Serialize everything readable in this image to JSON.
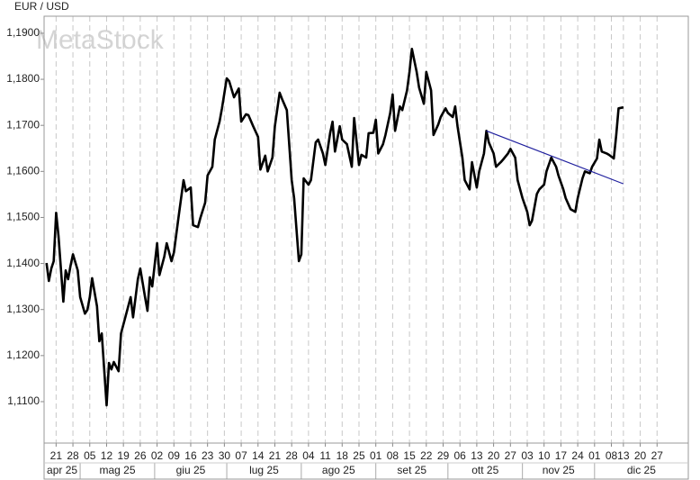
{
  "chart_data": {
    "type": "line",
    "title": "EUR / USD",
    "watermark": "MetaStock",
    "color": "#000000",
    "grid": true,
    "xlim": [
      "2025-04-16",
      "2026-01-09"
    ],
    "ylim": [
      1.101,
      1.1937
    ],
    "yticks": [
      {
        "value": 1.11,
        "label": "1,1100"
      },
      {
        "value": 1.12,
        "label": "1,1200"
      },
      {
        "value": 1.13,
        "label": "1,1300"
      },
      {
        "value": 1.14,
        "label": "1,1400"
      },
      {
        "value": 1.15,
        "label": "1,1500"
      },
      {
        "value": 1.16,
        "label": "1,1600"
      },
      {
        "value": 1.17,
        "label": "1,1700"
      },
      {
        "value": 1.18,
        "label": "1,1800"
      },
      {
        "value": 1.19,
        "label": "1,1900"
      }
    ],
    "xticks": [
      {
        "value": "2025-04-21",
        "label": "21"
      },
      {
        "value": "2025-04-28",
        "label": "28"
      },
      {
        "value": "2025-05-05",
        "label": "05"
      },
      {
        "value": "2025-05-12",
        "label": "12"
      },
      {
        "value": "2025-05-19",
        "label": "19"
      },
      {
        "value": "2025-05-26",
        "label": "26"
      },
      {
        "value": "2025-06-02",
        "label": "02"
      },
      {
        "value": "2025-06-09",
        "label": "09"
      },
      {
        "value": "2025-06-16",
        "label": "16"
      },
      {
        "value": "2025-06-23",
        "label": "23"
      },
      {
        "value": "2025-06-30",
        "label": "30"
      },
      {
        "value": "2025-07-07",
        "label": "07"
      },
      {
        "value": "2025-07-14",
        "label": "14"
      },
      {
        "value": "2025-07-21",
        "label": "21"
      },
      {
        "value": "2025-07-28",
        "label": "28"
      },
      {
        "value": "2025-08-04",
        "label": "04"
      },
      {
        "value": "2025-08-11",
        "label": "11"
      },
      {
        "value": "2025-08-18",
        "label": "18"
      },
      {
        "value": "2025-08-25",
        "label": "25"
      },
      {
        "value": "2025-09-01",
        "label": "01"
      },
      {
        "value": "2025-09-08",
        "label": "08"
      },
      {
        "value": "2025-09-15",
        "label": "15"
      },
      {
        "value": "2025-09-22",
        "label": "22"
      },
      {
        "value": "2025-09-29",
        "label": "29"
      },
      {
        "value": "2025-10-06",
        "label": "06"
      },
      {
        "value": "2025-10-13",
        "label": "13"
      },
      {
        "value": "2025-10-20",
        "label": "20"
      },
      {
        "value": "2025-10-27",
        "label": "27"
      },
      {
        "value": "2025-11-03",
        "label": "03"
      },
      {
        "value": "2025-11-10",
        "label": "10"
      },
      {
        "value": "2025-11-17",
        "label": "17"
      },
      {
        "value": "2025-11-24",
        "label": "24"
      },
      {
        "value": "2025-12-01",
        "label": "01"
      },
      {
        "value": "2025-12-08",
        "label": "08"
      },
      {
        "value": "2025-12-13",
        "label": "13"
      },
      {
        "value": "2025-12-20",
        "label": "20"
      },
      {
        "value": "2025-12-27",
        "label": "27"
      }
    ],
    "month_ticks": [
      {
        "value": "2025-04-01",
        "label": "apr 25"
      },
      {
        "value": "2025-05-01",
        "label": "mag 25"
      },
      {
        "value": "2025-06-01",
        "label": "giu 25"
      },
      {
        "value": "2025-07-01",
        "label": "lug 25"
      },
      {
        "value": "2025-08-01",
        "label": "ago 25"
      },
      {
        "value": "2025-09-01",
        "label": "set 25"
      },
      {
        "value": "2025-10-01",
        "label": "ott 25"
      },
      {
        "value": "2025-11-01",
        "label": "nov 25"
      },
      {
        "value": "2025-12-01",
        "label": "dic 25"
      }
    ],
    "x": [
      "2025-04-17",
      "2025-04-18",
      "2025-04-19",
      "2025-04-20",
      "2025-04-21",
      "2025-04-22",
      "2025-04-24",
      "2025-04-25",
      "2025-04-26",
      "2025-04-27",
      "2025-04-28",
      "2025-04-30",
      "2025-05-01",
      "2025-05-03",
      "2025-05-04",
      "2025-05-05",
      "2025-05-06",
      "2025-05-08",
      "2025-05-09",
      "2025-05-10",
      "2025-05-12",
      "2025-05-13",
      "2025-05-14",
      "2025-05-15",
      "2025-05-17",
      "2025-05-18",
      "2025-05-20",
      "2025-05-22",
      "2025-05-23",
      "2025-05-25",
      "2025-05-26",
      "2025-05-28",
      "2025-05-29",
      "2025-05-30",
      "2025-05-31",
      "2025-06-02",
      "2025-06-03",
      "2025-06-05",
      "2025-06-06",
      "2025-06-08",
      "2025-06-09",
      "2025-06-11",
      "2025-06-13",
      "2025-06-14",
      "2025-06-16",
      "2025-06-17",
      "2025-06-19",
      "2025-06-20",
      "2025-06-22",
      "2025-06-23",
      "2025-06-25",
      "2025-06-26",
      "2025-06-28",
      "2025-06-29",
      "2025-07-01",
      "2025-07-02",
      "2025-07-04",
      "2025-07-06",
      "2025-07-07",
      "2025-07-09",
      "2025-07-10",
      "2025-07-12",
      "2025-07-14",
      "2025-07-15",
      "2025-07-17",
      "2025-07-18",
      "2025-07-20",
      "2025-07-21",
      "2025-07-23",
      "2025-07-24",
      "2025-07-26",
      "2025-07-28",
      "2025-07-29",
      "2025-07-31",
      "2025-08-01",
      "2025-08-02",
      "2025-08-04",
      "2025-08-05",
      "2025-08-07",
      "2025-08-08",
      "2025-08-10",
      "2025-08-11",
      "2025-08-13",
      "2025-08-14",
      "2025-08-15",
      "2025-08-17",
      "2025-08-18",
      "2025-08-20",
      "2025-08-22",
      "2025-08-23",
      "2025-08-25",
      "2025-08-26",
      "2025-08-28",
      "2025-08-29",
      "2025-08-31",
      "2025-09-01",
      "2025-09-02",
      "2025-09-04",
      "2025-09-05",
      "2025-09-07",
      "2025-09-08",
      "2025-09-09",
      "2025-09-11",
      "2025-09-12",
      "2025-09-14",
      "2025-09-15",
      "2025-09-16",
      "2025-09-18",
      "2025-09-19",
      "2025-09-21",
      "2025-09-22",
      "2025-09-24",
      "2025-09-25",
      "2025-09-27",
      "2025-09-28",
      "2025-09-30",
      "2025-10-01",
      "2025-10-03",
      "2025-10-04",
      "2025-10-05",
      "2025-10-07",
      "2025-10-08",
      "2025-10-10",
      "2025-10-11",
      "2025-10-13",
      "2025-10-14",
      "2025-10-16",
      "2025-10-17",
      "2025-10-18",
      "2025-10-20",
      "2025-10-21",
      "2025-10-23",
      "2025-10-24",
      "2025-10-26",
      "2025-10-27",
      "2025-10-29",
      "2025-10-30",
      "2025-11-01",
      "2025-11-03",
      "2025-11-04",
      "2025-11-05",
      "2025-11-07",
      "2025-11-08",
      "2025-11-10",
      "2025-11-11",
      "2025-11-13",
      "2025-11-15",
      "2025-11-16",
      "2025-11-18",
      "2025-11-19",
      "2025-11-21",
      "2025-11-23",
      "2025-11-24",
      "2025-11-26",
      "2025-11-27",
      "2025-11-29",
      "2025-11-30",
      "2025-12-02",
      "2025-12-03",
      "2025-12-04",
      "2025-12-06",
      "2025-12-07",
      "2025-12-09",
      "2025-12-10",
      "2025-12-11",
      "2025-12-13"
    ],
    "values": [
      1.1401,
      1.1362,
      1.1389,
      1.1405,
      1.151,
      1.146,
      1.1317,
      1.1385,
      1.1366,
      1.1395,
      1.142,
      1.1385,
      1.1327,
      1.1291,
      1.1299,
      1.1327,
      1.1368,
      1.1307,
      1.1231,
      1.1248,
      1.1092,
      1.1184,
      1.117,
      1.1186,
      1.1166,
      1.1248,
      1.1287,
      1.1327,
      1.1283,
      1.1366,
      1.1389,
      1.1327,
      1.1297,
      1.137,
      1.135,
      1.1444,
      1.1375,
      1.1415,
      1.1444,
      1.1405,
      1.1424,
      1.1503,
      1.1581,
      1.1557,
      1.1565,
      1.1483,
      1.1479,
      1.1499,
      1.1532,
      1.1591,
      1.161,
      1.1669,
      1.1708,
      1.1737,
      1.1802,
      1.1796,
      1.1761,
      1.178,
      1.1708,
      1.1724,
      1.1722,
      1.1698,
      1.1675,
      1.1604,
      1.1634,
      1.16,
      1.163,
      1.1698,
      1.1771,
      1.1757,
      1.1733,
      1.1581,
      1.1542,
      1.1405,
      1.142,
      1.1585,
      1.1571,
      1.1581,
      1.1663,
      1.1669,
      1.1639,
      1.1614,
      1.1683,
      1.1708,
      1.1643,
      1.1698,
      1.1669,
      1.1659,
      1.161,
      1.1716,
      1.1614,
      1.1636,
      1.163,
      1.1683,
      1.1684,
      1.1712,
      1.1639,
      1.1659,
      1.1679,
      1.1727,
      1.1767,
      1.1688,
      1.1741,
      1.1733,
      1.1776,
      1.1816,
      1.1866,
      1.1816,
      1.1782,
      1.1747,
      1.1816,
      1.1776,
      1.1679,
      1.1702,
      1.1718,
      1.1737,
      1.1727,
      1.1718,
      1.1741,
      1.1698,
      1.163,
      1.1581,
      1.1561,
      1.162,
      1.1565,
      1.16,
      1.1639,
      1.1688,
      1.1663,
      1.1639,
      1.161,
      1.162,
      1.1626,
      1.1639,
      1.1649,
      1.163,
      1.1581,
      1.1542,
      1.1512,
      1.1483,
      1.1493,
      1.1551,
      1.1561,
      1.1571,
      1.16,
      1.163,
      1.161,
      1.1591,
      1.1561,
      1.1542,
      1.1518,
      1.1512,
      1.1542,
      1.1585,
      1.16,
      1.1596,
      1.161,
      1.1628,
      1.1669,
      1.1643,
      1.1639,
      1.1636,
      1.1628,
      1.1679,
      1.1737,
      1.1739
    ],
    "trendline": {
      "x": [
        "2025-10-17",
        "2025-12-13"
      ],
      "values": [
        1.1688,
        1.1573
      ],
      "color": "#1f1f9e"
    }
  }
}
